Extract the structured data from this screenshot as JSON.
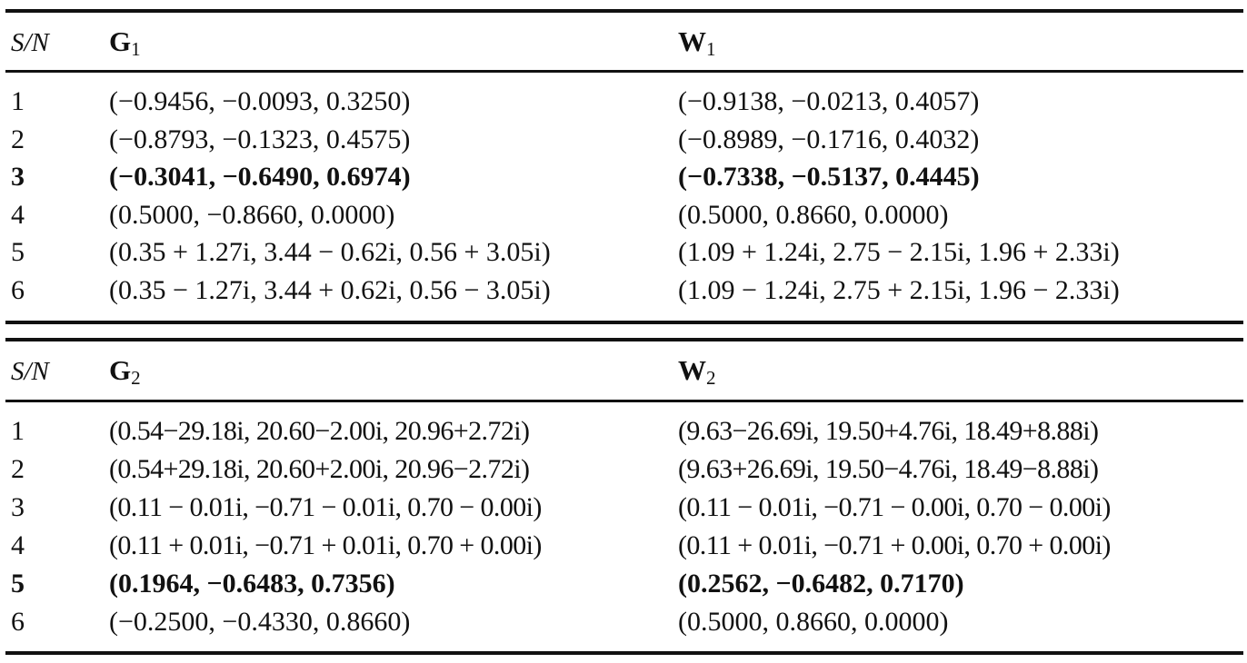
{
  "table1": {
    "header": {
      "sn": "S/N",
      "g_letter": "G",
      "g_sub": "1",
      "w_letter": "W",
      "w_sub": "1"
    },
    "rows": [
      {
        "sn": "1",
        "g": "(−0.9456, −0.0093, 0.3250)",
        "w": "(−0.9138, −0.0213, 0.4057)",
        "bold": false
      },
      {
        "sn": "2",
        "g": "(−0.8793, −0.1323, 0.4575)",
        "w": "(−0.8989, −0.1716, 0.4032)",
        "bold": false
      },
      {
        "sn": "3",
        "g": "(−0.3041, −0.6490, 0.6974)",
        "w": "(−0.7338, −0.5137, 0.4445)",
        "bold": true
      },
      {
        "sn": "4",
        "g": "(0.5000, −0.8660, 0.0000)",
        "w": "(0.5000, 0.8660, 0.0000)",
        "bold": false
      },
      {
        "sn": "5",
        "g": "(0.35 + 1.27i, 3.44 − 0.62i, 0.56 + 3.05i)",
        "w": "(1.09 + 1.24i, 2.75 − 2.15i, 1.96 + 2.33i)",
        "bold": false
      },
      {
        "sn": "6",
        "g": "(0.35 − 1.27i, 3.44 + 0.62i, 0.56 − 3.05i)",
        "w": "(1.09 − 1.24i, 2.75 + 2.15i, 1.96 − 2.33i)",
        "bold": false
      }
    ]
  },
  "table2": {
    "header": {
      "sn": "S/N",
      "g_letter": "G",
      "g_sub": "2",
      "w_letter": "W",
      "w_sub": "2"
    },
    "rows": [
      {
        "sn": "1",
        "g": "(0.54−29.18i, 20.60−2.00i, 20.96+2.72i)",
        "w": "(9.63−26.69i, 19.50+4.76i, 18.49+8.88i)",
        "bold": false
      },
      {
        "sn": "2",
        "g": "(0.54+29.18i, 20.60+2.00i, 20.96−2.72i)",
        "w": "(9.63+26.69i, 19.50−4.76i, 18.49−8.88i)",
        "bold": false
      },
      {
        "sn": "3",
        "g": "(0.11 − 0.01i, −0.71 − 0.01i, 0.70 − 0.00i)",
        "w": "(0.11 − 0.01i, −0.71 − 0.00i, 0.70 − 0.00i)",
        "bold": false
      },
      {
        "sn": "4",
        "g": "(0.11 + 0.01i, −0.71 + 0.01i, 0.70 + 0.00i)",
        "w": "(0.11 + 0.01i, −0.71 + 0.00i, 0.70 + 0.00i)",
        "bold": false
      },
      {
        "sn": "5",
        "g": "(0.1964, −0.6483, 0.7356)",
        "w": "(0.2562, −0.6482, 0.7170)",
        "bold": true
      },
      {
        "sn": "6",
        "g": "(−0.2500, −0.4330, 0.8660)",
        "w": "(0.5000, 0.8660, 0.0000)",
        "bold": false
      }
    ]
  }
}
